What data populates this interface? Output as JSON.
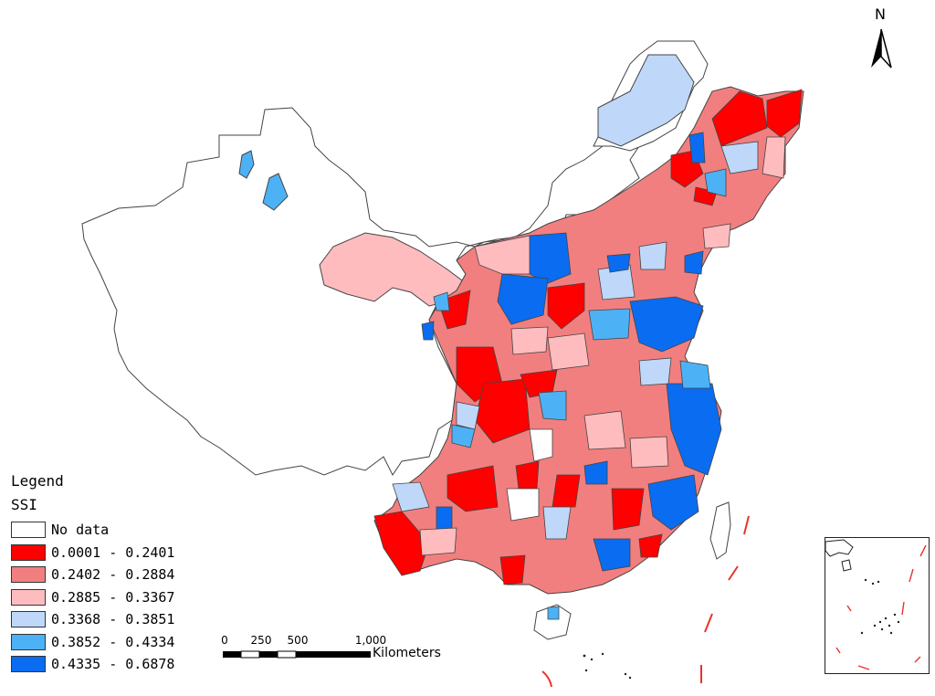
{
  "legend": {
    "title": "Legend",
    "subtitle": "SSI",
    "items": [
      {
        "label": "No data",
        "color": "#ffffff"
      },
      {
        "label": "0.0001 - 0.2401",
        "color": "#ff0000"
      },
      {
        "label": "0.2402 - 0.2884",
        "color": "#f27f7f"
      },
      {
        "label": "0.2885 - 0.3367",
        "color": "#ffbcbf"
      },
      {
        "label": "0.3368 - 0.3851",
        "color": "#bfd8fa"
      },
      {
        "label": "0.3852 - 0.4334",
        "color": "#4cb2f5"
      },
      {
        "label": "0.4335 - 0.6878",
        "color": "#0a6cf0"
      }
    ]
  },
  "north_arrow": {
    "label": "N"
  },
  "scale_bar": {
    "ticks": [
      "0",
      "250",
      "500",
      "1,000"
    ],
    "unit": "Kilometers"
  }
}
